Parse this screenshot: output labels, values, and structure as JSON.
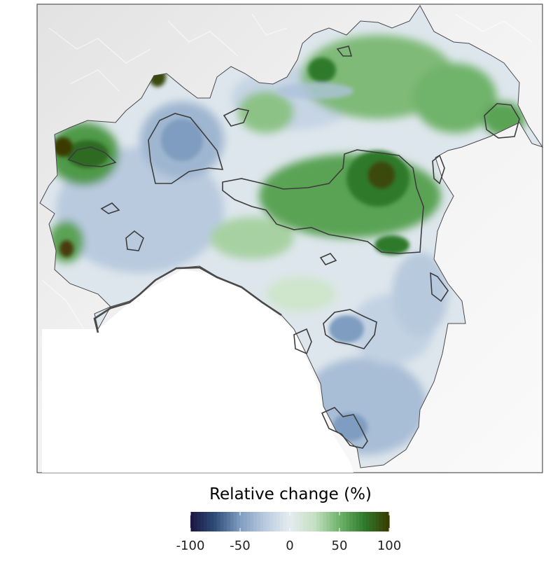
{
  "legend": {
    "title": "Relative change (%)",
    "min": -100,
    "max": 100,
    "ticks": [
      {
        "value": -100,
        "label": "-100"
      },
      {
        "value": -50,
        "label": "-50"
      },
      {
        "value": 0,
        "label": "0"
      },
      {
        "value": 50,
        "label": "50"
      },
      {
        "value": 100,
        "label": "100"
      }
    ],
    "colors": {
      "neg_extreme": "#1c1440",
      "neg_strong": "#2f4e7a",
      "neg_mid": "#7f9dc0",
      "neg_weak": "#b9cadf",
      "neutral": "#e6ecf0",
      "pos_weak": "#c4e0c2",
      "pos_mid": "#6fb36a",
      "pos_strong": "#2f7a2c",
      "pos_extreme": "#3a3a00"
    }
  },
  "map": {
    "background_color": "#f0f0f0",
    "frame_color": "#555555",
    "outline_color": "#4a4a4a"
  }
}
